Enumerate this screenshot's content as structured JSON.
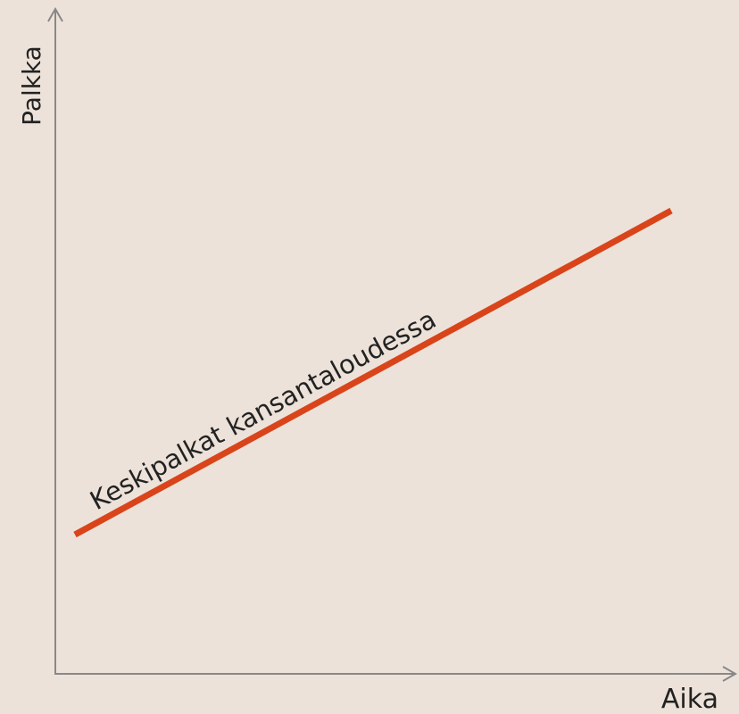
{
  "axes": {
    "y_label": "Palkka",
    "x_label": "Aika"
  },
  "line_label": "Keskipalkat kansantaloudessa"
}
